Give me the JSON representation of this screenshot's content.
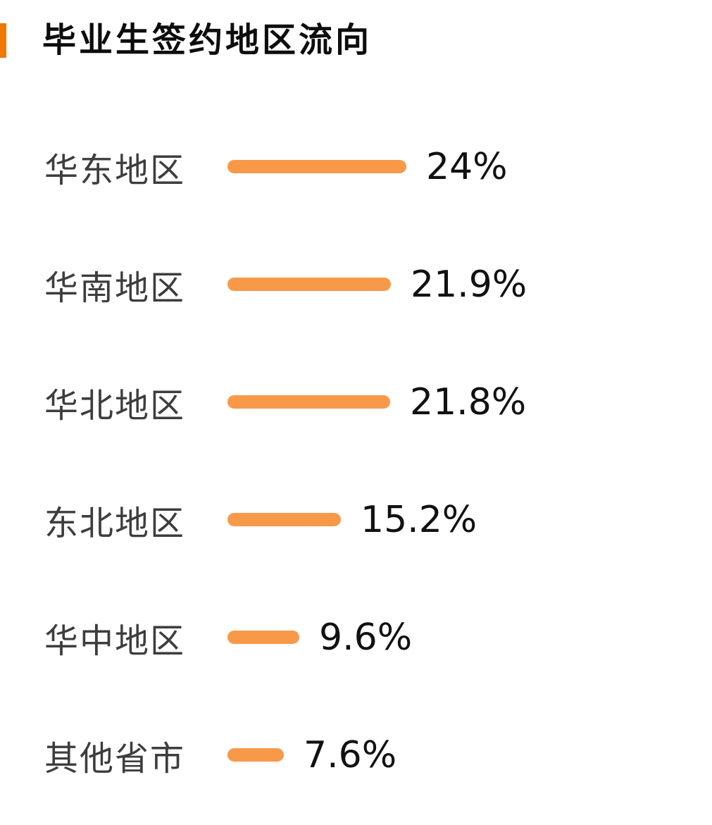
{
  "header": {
    "title": "毕业生签约地区流向",
    "accent_color": "#F07800"
  },
  "chart_data": {
    "type": "bar",
    "orientation": "horizontal",
    "title": "毕业生签约地区流向",
    "categories": [
      "华东地区",
      "华南地区",
      "华北地区",
      "东北地区",
      "华中地区",
      "其他省市"
    ],
    "values": [
      24,
      21.9,
      21.8,
      15.2,
      9.6,
      7.6
    ],
    "value_labels": [
      "24%",
      "21.9%",
      "21.8%",
      "15.2%",
      "9.6%",
      "7.6%"
    ],
    "rows": [
      {
        "label": "华东地区",
        "value": 24,
        "value_label": "24%"
      },
      {
        "label": "华南地区",
        "value": 21.9,
        "value_label": "21.9%"
      },
      {
        "label": "华北地区",
        "value": 21.8,
        "value_label": "21.8%"
      },
      {
        "label": "东北地区",
        "value": 15.2,
        "value_label": "15.2%"
      },
      {
        "label": "华中地区",
        "value": 9.6,
        "value_label": "9.6%"
      },
      {
        "label": "其他省市",
        "value": 7.6,
        "value_label": "7.6%"
      }
    ],
    "xlim": [
      0,
      24
    ],
    "grid": false,
    "legend": false,
    "bar_color": "#F8994A",
    "label_color": "#3d3d3d",
    "value_color": "#111111",
    "unit": "%"
  }
}
